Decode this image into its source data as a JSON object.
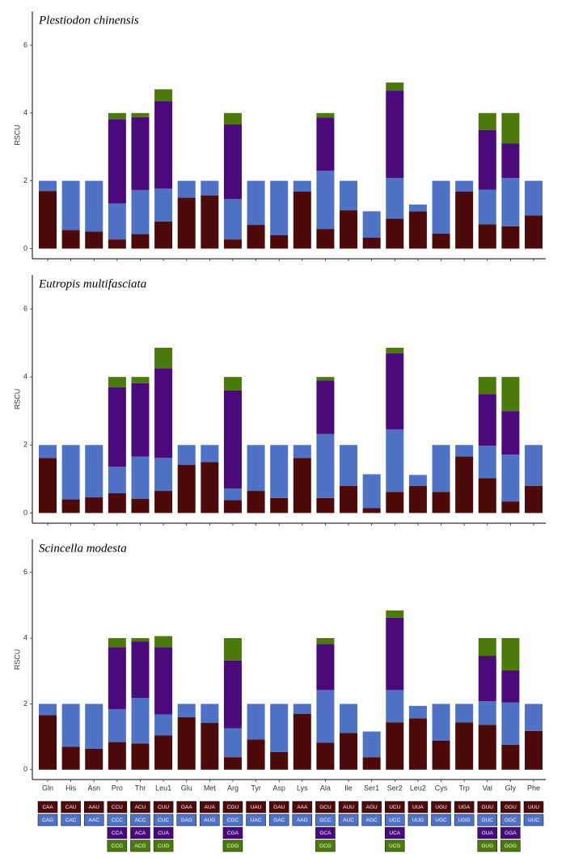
{
  "chart_data": [
    {
      "type": "bar",
      "stacked": true,
      "title": "Plestiodon chinensis",
      "ylabel": "RSCU",
      "ylim": [
        -0.3,
        7
      ],
      "yticks": [
        0,
        2,
        4,
        6
      ],
      "series": [
        {
          "color": "#4d0a0a",
          "values": [
            1.7,
            0.55,
            0.5,
            0.27,
            0.43,
            0.8,
            1.5,
            1.57,
            0.27,
            0.7,
            0.4,
            1.68,
            0.58,
            1.13,
            0.32,
            0.88,
            1.1,
            0.44,
            1.68,
            0.72,
            0.66,
            0.98
          ]
        },
        {
          "color": "#4f72c4",
          "values": [
            0.3,
            1.45,
            1.5,
            1.06,
            1.3,
            0.97,
            0.5,
            0.43,
            1.19,
            1.3,
            1.6,
            0.32,
            1.72,
            0.87,
            0.78,
            1.2,
            0.2,
            1.56,
            0.32,
            1.02,
            1.42,
            1.02
          ]
        },
        {
          "color": "#4b0a7c",
          "values": [
            null,
            null,
            null,
            2.49,
            2.15,
            2.58,
            null,
            null,
            2.2,
            null,
            null,
            null,
            1.57,
            null,
            null,
            2.58,
            null,
            null,
            null,
            1.76,
            1.02,
            null
          ]
        },
        {
          "color": "#4c7a0a",
          "values": [
            null,
            null,
            null,
            0.18,
            0.12,
            0.35,
            null,
            null,
            0.34,
            null,
            null,
            null,
            0.13,
            null,
            null,
            0.24,
            null,
            null,
            null,
            0.5,
            0.9,
            null
          ]
        }
      ]
    },
    {
      "type": "bar",
      "stacked": true,
      "title": "Eutropis multifasciata",
      "ylabel": "RSCU",
      "ylim": [
        -0.3,
        7
      ],
      "yticks": [
        0,
        2,
        4,
        6
      ],
      "series": [
        {
          "color": "#4d0a0a",
          "values": [
            1.62,
            0.4,
            0.46,
            0.58,
            0.42,
            0.65,
            1.42,
            1.5,
            0.38,
            0.65,
            0.44,
            1.62,
            0.44,
            0.8,
            0.14,
            0.62,
            0.8,
            0.62,
            1.66,
            1.02,
            0.34,
            0.8
          ]
        },
        {
          "color": "#4f72c4",
          "values": [
            0.38,
            1.6,
            1.54,
            0.78,
            1.24,
            0.97,
            0.58,
            0.5,
            0.34,
            1.35,
            1.56,
            0.38,
            1.88,
            1.2,
            1.0,
            1.84,
            0.32,
            1.38,
            0.34,
            0.96,
            1.38,
            1.2
          ]
        },
        {
          "color": "#4b0a7c",
          "values": [
            null,
            null,
            null,
            2.34,
            2.16,
            2.64,
            null,
            null,
            2.88,
            null,
            null,
            null,
            1.58,
            null,
            null,
            2.24,
            null,
            null,
            null,
            1.52,
            1.28,
            null
          ]
        },
        {
          "color": "#4c7a0a",
          "values": [
            null,
            null,
            null,
            0.3,
            0.18,
            0.6,
            null,
            null,
            0.4,
            null,
            null,
            null,
            0.1,
            null,
            null,
            0.16,
            null,
            null,
            null,
            0.5,
            1.0,
            null
          ]
        }
      ]
    },
    {
      "type": "bar",
      "stacked": true,
      "title": "Scincella modesta",
      "ylabel": "RSCU",
      "ylim": [
        -0.3,
        7
      ],
      "yticks": [
        0,
        2,
        4,
        6
      ],
      "categories": [
        "Gln",
        "His",
        "Asn",
        "Pro",
        "Thr",
        "Leu1",
        "Glu",
        "Met",
        "Arg",
        "Tyr",
        "Asp",
        "Lys",
        "Ala",
        "Ile",
        "Ser1",
        "Ser2",
        "Leu2",
        "Cys",
        "Trp",
        "Val",
        "Gly",
        "Phe"
      ],
      "series": [
        {
          "color": "#4d0a0a",
          "values": [
            1.66,
            0.7,
            0.64,
            0.84,
            0.8,
            1.04,
            1.6,
            1.42,
            0.38,
            0.92,
            0.54,
            1.7,
            0.82,
            1.12,
            0.38,
            1.44,
            1.56,
            0.88,
            1.44,
            1.36,
            0.76,
            1.18
          ]
        },
        {
          "color": "#4f72c4",
          "values": [
            0.34,
            1.3,
            1.36,
            1.0,
            1.38,
            0.64,
            0.4,
            0.58,
            0.88,
            1.08,
            1.46,
            0.3,
            1.6,
            0.88,
            0.78,
            0.98,
            0.38,
            1.12,
            0.56,
            0.72,
            1.28,
            0.82
          ]
        },
        {
          "color": "#4b0a7c",
          "values": [
            null,
            null,
            null,
            1.88,
            1.72,
            2.04,
            null,
            null,
            2.06,
            null,
            null,
            null,
            1.4,
            null,
            null,
            2.2,
            null,
            null,
            null,
            1.38,
            0.98,
            null
          ]
        },
        {
          "color": "#4c7a0a",
          "values": [
            null,
            null,
            null,
            0.28,
            0.1,
            0.34,
            null,
            null,
            0.68,
            null,
            null,
            null,
            0.18,
            null,
            null,
            0.22,
            null,
            null,
            null,
            0.54,
            0.98,
            null
          ]
        }
      ]
    }
  ],
  "codon_table": {
    "colors": [
      "#4d0a0a",
      "#4f72c4",
      "#4b0a7c",
      "#4c7a0a"
    ],
    "rows": [
      [
        "CAA",
        "CAU",
        "AAU",
        "CCU",
        "ACU",
        "CUU",
        "GAA",
        "AUA",
        "CGU",
        "UAU",
        "GAU",
        "AAA",
        "GCU",
        "AUU",
        "AGU",
        "UCU",
        "UUA",
        "UGU",
        "UGA",
        "GUU",
        "GGU",
        "UUU"
      ],
      [
        "CAG",
        "CAC",
        "AAC",
        "CCC",
        "ACC",
        "CUC",
        "GAG",
        "AUG",
        "CGC",
        "UAC",
        "GAC",
        "AAG",
        "GCC",
        "AUC",
        "AGC",
        "UCC",
        "UUG",
        "UGC",
        "UGG",
        "GUC",
        "GGC",
        "UUC"
      ],
      [
        null,
        null,
        null,
        "CCA",
        "ACA",
        "CUA",
        null,
        null,
        "CGA",
        null,
        null,
        null,
        "GCA",
        null,
        null,
        "UCA",
        null,
        null,
        null,
        "GUA",
        "GGA",
        null
      ],
      [
        null,
        null,
        null,
        "CCG",
        "ACG",
        "CUG",
        null,
        null,
        "CGG",
        null,
        null,
        null,
        "GCG",
        null,
        null,
        "UCG",
        null,
        null,
        null,
        "GUG",
        "GGG",
        null
      ]
    ]
  }
}
